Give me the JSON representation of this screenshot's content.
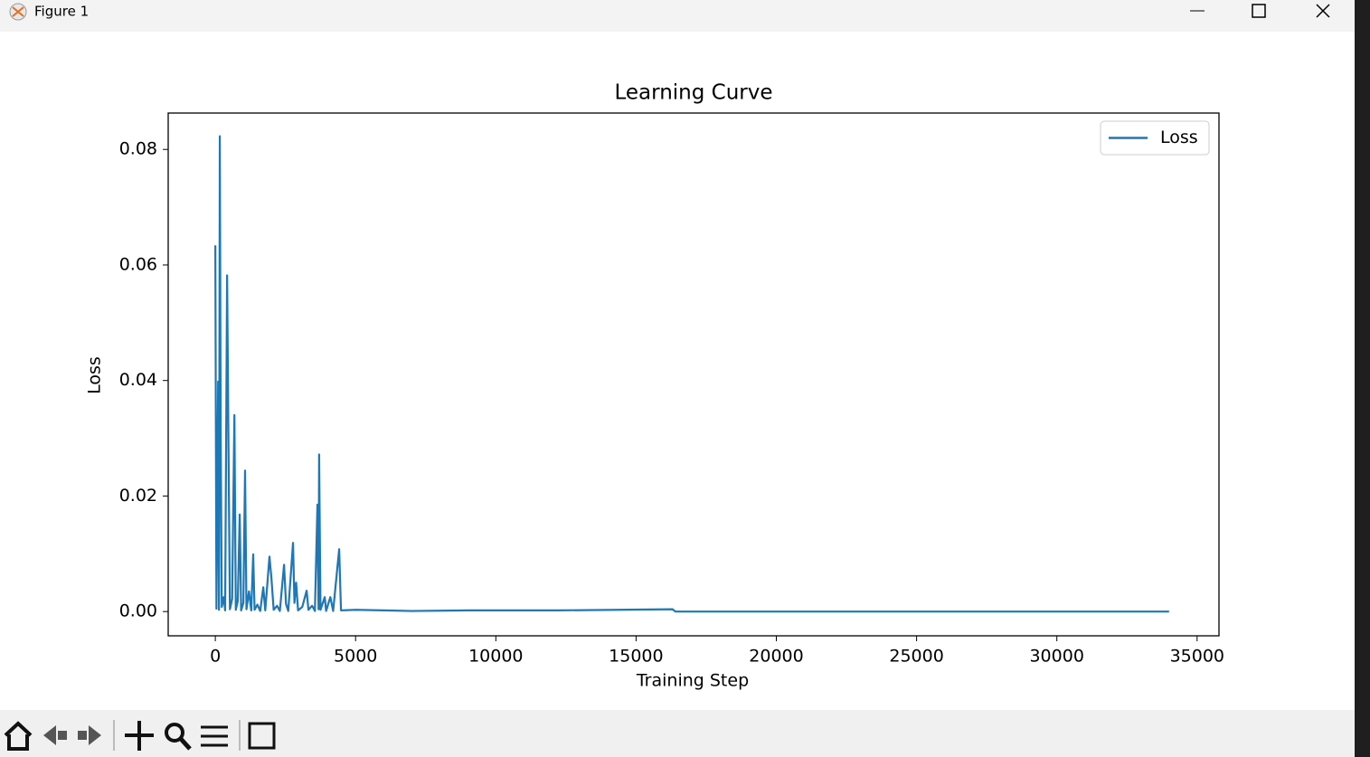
{
  "window": {
    "title": "Figure 1"
  },
  "chart_data": {
    "type": "line",
    "title": "Learning Curve",
    "x_label": "Training Step",
    "y_label": "Loss",
    "x": [
      0,
      40,
      100,
      130,
      160,
      190,
      230,
      300,
      350,
      420,
      470,
      520,
      600,
      680,
      730,
      800,
      870,
      920,
      1000,
      1060,
      1110,
      1200,
      1280,
      1350,
      1400,
      1500,
      1600,
      1710,
      1780,
      1930,
      2000,
      2080,
      2200,
      2300,
      2450,
      2520,
      2600,
      2770,
      2820,
      2880,
      2950,
      3100,
      3255,
      3320,
      3450,
      3550,
      3640,
      3680,
      3700,
      3750,
      3900,
      3950,
      4100,
      4200,
      4415,
      4480,
      5000,
      6000,
      7000,
      9000,
      12200,
      16300,
      16400,
      20000,
      34000
    ],
    "series": [
      {
        "name": "Loss",
        "color": "#1f77b4",
        "values": [
          0.0634,
          0.0005,
          0.0398,
          0.0003,
          0.0823,
          0.0316,
          0.0008,
          0.0025,
          0.0002,
          0.0582,
          0.0279,
          0.0004,
          0.0022,
          0.034,
          0.0003,
          0.0018,
          0.0168,
          0.0002,
          0.0015,
          0.0244,
          0.0004,
          0.0035,
          0.0002,
          0.0099,
          0.0003,
          0.0012,
          0.0001,
          0.0042,
          0.0002,
          0.0095,
          0.0058,
          0.0003,
          0.001,
          0.0001,
          0.0081,
          0.0013,
          0.0001,
          0.0119,
          0.0015,
          0.005,
          0.0002,
          0.0008,
          0.0036,
          0.0003,
          0.001,
          0.0001,
          0.0185,
          0.0004,
          0.0272,
          0.0003,
          0.0025,
          0.0001,
          0.0025,
          0.0001,
          0.0108,
          0.0002,
          0.0003,
          0.0002,
          0.0001,
          0.0002,
          0.0002,
          0.0004,
          0,
          0,
          0
        ]
      }
    ],
    "xlim": [
      -1680,
      35780
    ],
    "ylim": [
      -0.0042,
      0.0863
    ],
    "xticks": [
      0,
      5000,
      10000,
      15000,
      20000,
      25000,
      30000,
      35000
    ],
    "yticks": [
      {
        "value": 0,
        "label": "0.00"
      },
      0.02,
      0.04,
      0.06,
      0.08
    ],
    "grid": false,
    "legend": "upper right"
  }
}
